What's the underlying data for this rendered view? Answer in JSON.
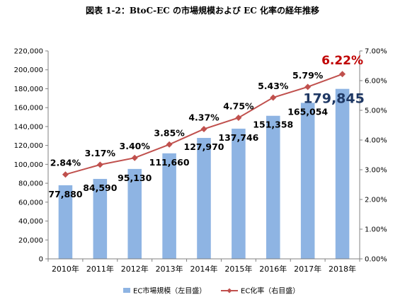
{
  "chart_data": {
    "type": "bar",
    "title": "図表 1-2：BtoC-EC の市場規模および EC 化率の経年推移",
    "categories": [
      "2010年",
      "2011年",
      "2012年",
      "2013年",
      "2014年",
      "2015年",
      "2016年",
      "2017年",
      "2018年"
    ],
    "series": [
      {
        "name": "EC市場規模（左目盛）",
        "type": "bar",
        "axis": "left",
        "values": [
          77880,
          84590,
          95130,
          111660,
          127970,
          137746,
          151358,
          165054,
          179845
        ],
        "labels": [
          "77,880",
          "84,590",
          "95,130",
          "111,660",
          "127,970",
          "137,746",
          "151,358",
          "165,054",
          "179,845"
        ],
        "color": "#8eb4e3"
      },
      {
        "name": "EC化率（右目盛）",
        "type": "line",
        "axis": "right",
        "values": [
          2.84,
          3.17,
          3.4,
          3.85,
          4.37,
          4.75,
          5.43,
          5.79,
          6.22
        ],
        "labels": [
          "2.84%",
          "3.17%",
          "3.40%",
          "3.85%",
          "4.37%",
          "4.75%",
          "5.43%",
          "5.79%",
          "6.22%"
        ],
        "color": "#c0504d"
      }
    ],
    "y_left": {
      "min": 0,
      "max": 220000,
      "ticks": [
        "0",
        "20,000",
        "40,000",
        "60,000",
        "80,000",
        "100,000",
        "120,000",
        "140,000",
        "160,000",
        "180,000",
        "200,000",
        "220,000"
      ]
    },
    "y_right": {
      "min": 0,
      "max": 7,
      "ticks": [
        "0.00%",
        "1.00%",
        "2.00%",
        "3.00%",
        "4.00%",
        "5.00%",
        "6.00%",
        "7.00%"
      ]
    },
    "highlight_colors": {
      "last_bar_label": "#1f3864",
      "last_pct_label": "#c00000"
    },
    "legend_position": "bottom"
  }
}
